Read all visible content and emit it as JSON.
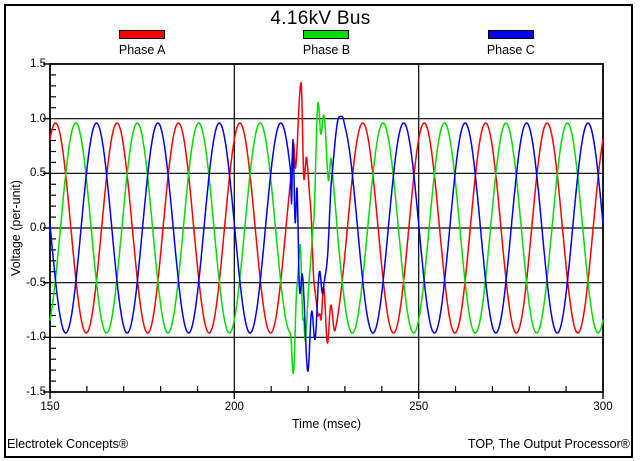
{
  "window": {
    "footer_left": "Electrotek Concepts®",
    "footer_right": "TOP, The Output Processor®"
  },
  "chart_data": {
    "type": "line",
    "title": "4.16kV Bus",
    "xlabel": "Time (msec)",
    "ylabel": "Voltage (per-unit)",
    "xlim": [
      150,
      300
    ],
    "ylim": [
      -1.5,
      1.5
    ],
    "x_major_ticks": [
      {
        "v": 150,
        "label": "150"
      },
      {
        "v": 200,
        "label": "200"
      },
      {
        "v": 250,
        "label": "250"
      },
      {
        "v": 300,
        "label": "300"
      }
    ],
    "x_minor_step": 10,
    "y_major_ticks": [
      {
        "v": 1.5,
        "label": "1.5"
      },
      {
        "v": 1.0,
        "label": "1.0"
      },
      {
        "v": 0.5,
        "label": "0.5"
      },
      {
        "v": 0.0,
        "label": "0.0"
      },
      {
        "v": -0.5,
        "label": "-0.5"
      },
      {
        "v": -1.0,
        "label": "-1.0"
      },
      {
        "v": -1.5,
        "label": "-1.5"
      }
    ],
    "y_minor_step": 0.1,
    "grid": {
      "vertical_at": [
        200,
        250
      ],
      "horizontal_at": [
        1.0,
        0.5,
        0.0,
        -0.5,
        -1.0
      ]
    },
    "legend_position": "top",
    "legend": [
      {
        "label": "Phase A",
        "color": "#ff0000"
      },
      {
        "label": "Phase B",
        "color": "#00dd00"
      },
      {
        "label": "Phase C",
        "color": "#0000ee"
      }
    ],
    "waveform": {
      "description": "Three-phase 60 Hz voltage waveforms, ~0.96 per-unit amplitude, with an oscillatory switching transient between ~215 ms and ~229 ms reaching +1.33 pu (Phase A) and -1.33 pu (Phase B).",
      "frequency_hz": 60,
      "amplitude_pu": 0.96,
      "sample_step_ms": 0.1,
      "transient": {
        "start_ms": 215.2,
        "end_ms": 230.2,
        "peak_overvoltage_pu": 1.33,
        "peak_undervoltage_pu": -1.33
      },
      "series": [
        {
          "name": "Phase A",
          "color": "#ff0000",
          "peak_time_ms": 151.5,
          "transient_offsets": [
            [
              215.3,
              0
            ],
            [
              216.0,
              0.12
            ],
            [
              216.6,
              -0.25
            ],
            [
              218.1,
              0.37
            ],
            [
              218.9,
              -0.48
            ],
            [
              219.6,
              -0.18
            ],
            [
              220.6,
              -0.35
            ],
            [
              221.6,
              -0.75
            ],
            [
              222.5,
              -0.7
            ],
            [
              223.4,
              -0.45
            ],
            [
              224.3,
              0.1
            ],
            [
              225.2,
              -0.2
            ],
            [
              226.2,
              0.25
            ],
            [
              227.3,
              -0.02
            ],
            [
              228.3,
              0
            ]
          ]
        },
        {
          "name": "Phase B",
          "color": "#00dd00",
          "peak_time_ms": 157.0,
          "transient_offsets": [
            [
              215.2,
              0
            ],
            [
              216.0,
              -0.4
            ],
            [
              217.0,
              0.25
            ],
            [
              217.8,
              0.42
            ],
            [
              218.7,
              -0.55
            ],
            [
              219.3,
              -0.95
            ],
            [
              220.4,
              -0.75
            ],
            [
              221.5,
              -0.6
            ],
            [
              222.7,
              0.25
            ],
            [
              223.5,
              -0.1
            ],
            [
              224.3,
              0.1
            ],
            [
              225.5,
              -0.3
            ],
            [
              226.3,
              0.1
            ],
            [
              227.2,
              0.05
            ],
            [
              228.3,
              0
            ]
          ]
        },
        {
          "name": "Phase C",
          "color": "#0000ee",
          "peak_time_ms": 162.6,
          "transient_offsets": [
            [
              215.2,
              0
            ],
            [
              215.5,
              -0.22
            ],
            [
              215.9,
              0.5
            ],
            [
              216.5,
              -0.05
            ],
            [
              217.0,
              0.45
            ],
            [
              217.7,
              -0.25
            ],
            [
              218.5,
              0.15
            ],
            [
              219.9,
              -0.42
            ],
            [
              221.0,
              0.2
            ],
            [
              221.9,
              -0.12
            ],
            [
              223.0,
              0.27
            ],
            [
              224.1,
              -0.22
            ],
            [
              225.2,
              -0.33
            ],
            [
              226.4,
              0.0
            ],
            [
              228.0,
              0.12
            ],
            [
              229.2,
              0.06
            ],
            [
              230.2,
              0
            ]
          ]
        }
      ]
    }
  }
}
